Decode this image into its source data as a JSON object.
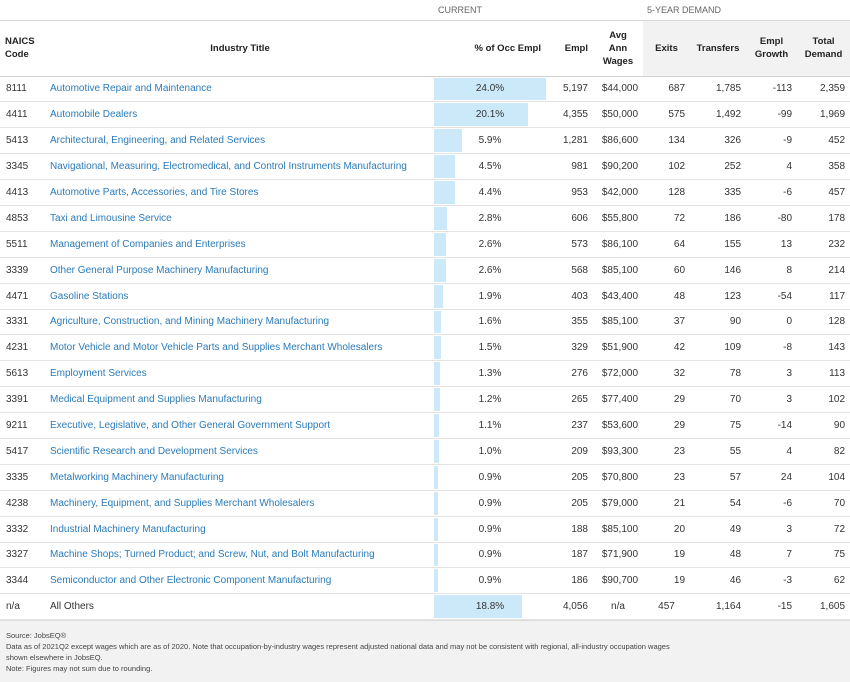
{
  "groups": {
    "current": "CURRENT",
    "demand": "5-YEAR DEMAND"
  },
  "headers": {
    "naics_line1": "NAICS",
    "naics_line2": "Code",
    "title": "Industry Title",
    "pct": "% of Occ Empl",
    "empl": "Empl",
    "wage_line1": "Avg",
    "wage_line2": "Ann",
    "wage_line3": "Wages",
    "exits": "Exits",
    "transfers": "Transfers",
    "growth_line1": "Empl",
    "growth_line2": "Growth",
    "total_line1": "Total",
    "total_line2": "Demand"
  },
  "rows": [
    {
      "naics": "8111",
      "title": "Automotive Repair and Maintenance",
      "pct": "24.0%",
      "pct_value": 24.0,
      "empl": "5,197",
      "wage": "$44,000",
      "exits": "687",
      "transfers": "1,785",
      "growth": "-113",
      "total": "2,359"
    },
    {
      "naics": "4411",
      "title": "Automobile Dealers",
      "pct": "20.1%",
      "pct_value": 20.1,
      "empl": "4,355",
      "wage": "$50,000",
      "exits": "575",
      "transfers": "1,492",
      "growth": "-99",
      "total": "1,969"
    },
    {
      "naics": "5413",
      "title": "Architectural, Engineering, and Related Services",
      "pct": "5.9%",
      "pct_value": 5.9,
      "empl": "1,281",
      "wage": "$86,600",
      "exits": "134",
      "transfers": "326",
      "growth": "-9",
      "total": "452"
    },
    {
      "naics": "3345",
      "title": "Navigational, Measuring, Electromedical, and Control Instruments Manufacturing",
      "pct": "4.5%",
      "pct_value": 4.5,
      "empl": "981",
      "wage": "$90,200",
      "exits": "102",
      "transfers": "252",
      "growth": "4",
      "total": "358"
    },
    {
      "naics": "4413",
      "title": "Automotive Parts, Accessories, and Tire Stores",
      "pct": "4.4%",
      "pct_value": 4.4,
      "empl": "953",
      "wage": "$42,000",
      "exits": "128",
      "transfers": "335",
      "growth": "-6",
      "total": "457"
    },
    {
      "naics": "4853",
      "title": "Taxi and Limousine Service",
      "pct": "2.8%",
      "pct_value": 2.8,
      "empl": "606",
      "wage": "$55,800",
      "exits": "72",
      "transfers": "186",
      "growth": "-80",
      "total": "178"
    },
    {
      "naics": "5511",
      "title": "Management of Companies and Enterprises",
      "pct": "2.6%",
      "pct_value": 2.6,
      "empl": "573",
      "wage": "$86,100",
      "exits": "64",
      "transfers": "155",
      "growth": "13",
      "total": "232"
    },
    {
      "naics": "3339",
      "title": "Other General Purpose Machinery Manufacturing",
      "pct": "2.6%",
      "pct_value": 2.6,
      "empl": "568",
      "wage": "$85,100",
      "exits": "60",
      "transfers": "146",
      "growth": "8",
      "total": "214"
    },
    {
      "naics": "4471",
      "title": "Gasoline Stations",
      "pct": "1.9%",
      "pct_value": 1.9,
      "empl": "403",
      "wage": "$43,400",
      "exits": "48",
      "transfers": "123",
      "growth": "-54",
      "total": "117"
    },
    {
      "naics": "3331",
      "title": "Agriculture, Construction, and Mining Machinery Manufacturing",
      "pct": "1.6%",
      "pct_value": 1.6,
      "empl": "355",
      "wage": "$85,100",
      "exits": "37",
      "transfers": "90",
      "growth": "0",
      "total": "128"
    },
    {
      "naics": "4231",
      "title": "Motor Vehicle and Motor Vehicle Parts and Supplies Merchant Wholesalers",
      "pct": "1.5%",
      "pct_value": 1.5,
      "empl": "329",
      "wage": "$51,900",
      "exits": "42",
      "transfers": "109",
      "growth": "-8",
      "total": "143"
    },
    {
      "naics": "5613",
      "title": "Employment Services",
      "pct": "1.3%",
      "pct_value": 1.3,
      "empl": "276",
      "wage": "$72,000",
      "exits": "32",
      "transfers": "78",
      "growth": "3",
      "total": "113"
    },
    {
      "naics": "3391",
      "title": "Medical Equipment and Supplies Manufacturing",
      "pct": "1.2%",
      "pct_value": 1.2,
      "empl": "265",
      "wage": "$77,400",
      "exits": "29",
      "transfers": "70",
      "growth": "3",
      "total": "102"
    },
    {
      "naics": "9211",
      "title": "Executive, Legislative, and Other General Government Support",
      "pct": "1.1%",
      "pct_value": 1.1,
      "empl": "237",
      "wage": "$53,600",
      "exits": "29",
      "transfers": "75",
      "growth": "-14",
      "total": "90"
    },
    {
      "naics": "5417",
      "title": "Scientific Research and Development Services",
      "pct": "1.0%",
      "pct_value": 1.0,
      "empl": "209",
      "wage": "$93,300",
      "exits": "23",
      "transfers": "55",
      "growth": "4",
      "total": "82"
    },
    {
      "naics": "3335",
      "title": "Metalworking Machinery Manufacturing",
      "pct": "0.9%",
      "pct_value": 0.9,
      "empl": "205",
      "wage": "$70,800",
      "exits": "23",
      "transfers": "57",
      "growth": "24",
      "total": "104"
    },
    {
      "naics": "4238",
      "title": "Machinery, Equipment, and Supplies Merchant Wholesalers",
      "pct": "0.9%",
      "pct_value": 0.9,
      "empl": "205",
      "wage": "$79,000",
      "exits": "21",
      "transfers": "54",
      "growth": "-6",
      "total": "70"
    },
    {
      "naics": "3332",
      "title": "Industrial Machinery Manufacturing",
      "pct": "0.9%",
      "pct_value": 0.9,
      "empl": "188",
      "wage": "$85,100",
      "exits": "20",
      "transfers": "49",
      "growth": "3",
      "total": "72"
    },
    {
      "naics": "3327",
      "title": "Machine Shops; Turned Product; and Screw, Nut, and Bolt Manufacturing",
      "pct": "0.9%",
      "pct_value": 0.9,
      "empl": "187",
      "wage": "$71,900",
      "exits": "19",
      "transfers": "48",
      "growth": "7",
      "total": "75"
    },
    {
      "naics": "3344",
      "title": "Semiconductor and Other Electronic Component Manufacturing",
      "pct": "0.9%",
      "pct_value": 0.9,
      "empl": "186",
      "wage": "$90,700",
      "exits": "19",
      "transfers": "46",
      "growth": "-3",
      "total": "62"
    }
  ],
  "others": {
    "naics": "n/a",
    "title": "All Others",
    "pct": "18.8%",
    "pct_value": 18.8,
    "empl": "4,056",
    "wage": "n/a",
    "exits": "457",
    "transfers": "1,164",
    "growth": "-15",
    "total": "1,605"
  },
  "footer": {
    "source": "Source: JobsEQ®",
    "note1": "Data as of 2021Q2 except wages which are as of 2020. Note that occupation-by-industry wages represent adjusted national data and may not be consistent with regional, all-industry occupation wages",
    "note2": "shown elsewhere in JobsEQ.",
    "note3": "Note: Figures may not sum due to rounding."
  },
  "colors": {
    "link": "#2b7bb9",
    "bar": "#cce9fa",
    "shade": "#f2f2f2"
  }
}
